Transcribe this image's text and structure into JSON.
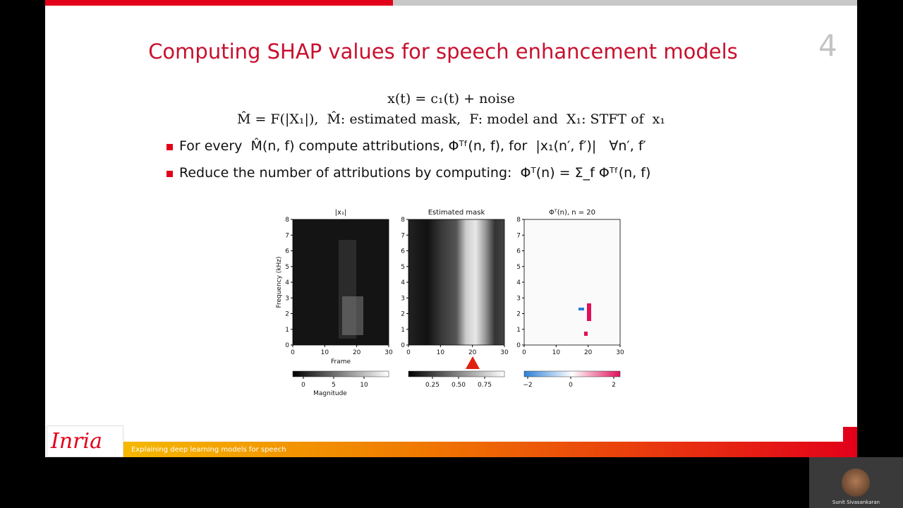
{
  "slide": {
    "title": "Computing SHAP values for speech enhancement models",
    "page_number": "4",
    "equations": [
      "x(t) = c₁(t) + noise",
      "M̂ = F(|X₁|),  M̂: estimated mask,  F: model and  X₁: STFT of  x₁"
    ],
    "bullets": [
      "For every  M̂(n, f) compute attributions, Φᵀᶠ(n, f), for  |x₁(n′, f′)|   ∀n′, f′",
      "Reduce the number of attributions by computing:  Φᵀ(n) = Σ_f Φᵀᶠ(n, f)"
    ],
    "figure": {
      "y_label": "Frequency (kHz)",
      "x_label": "Frame",
      "yticks": [
        0,
        1,
        2,
        3,
        4,
        5,
        6,
        7,
        8
      ],
      "xticks": [
        0,
        10,
        20,
        30
      ],
      "panels": [
        {
          "title": "|x₁|",
          "colorbar_ticks": [
            "0",
            "5",
            "10"
          ],
          "colorbar_label": "Magnitude"
        },
        {
          "title": "Estimated mask",
          "colorbar_ticks": [
            "0.25",
            "0.50",
            "0.75"
          ]
        },
        {
          "title": "Φᵀ(n), n = 20",
          "colorbar_ticks": [
            "−2",
            "0",
            "2"
          ]
        }
      ]
    }
  },
  "footer": {
    "logo": "Inria",
    "text": "Explaining deep learning models for speech"
  },
  "participant": {
    "name": "Sunit Sivasankaran"
  }
}
